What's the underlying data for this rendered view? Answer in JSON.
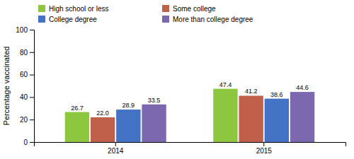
{
  "chart_data": {
    "type": "bar",
    "categories": [
      "2014",
      "2015"
    ],
    "series": [
      {
        "name": "High school or less",
        "color": "#8DC63F",
        "values": [
          26.7,
          47.4
        ],
        "value_labels": [
          "26.7",
          "47.4"
        ]
      },
      {
        "name": "Some college",
        "color": "#C1604A",
        "values": [
          22.0,
          41.2
        ],
        "value_labels": [
          "22.0",
          "41.2"
        ]
      },
      {
        "name": "College degree",
        "color": "#4472C4",
        "values": [
          28.9,
          38.6
        ],
        "value_labels": [
          "28.9",
          "38.6"
        ]
      },
      {
        "name": "More than college degree",
        "color": "#7B68AE",
        "values": [
          33.5,
          44.6
        ],
        "value_labels": [
          "33.5",
          "44.6"
        ]
      }
    ],
    "ylabel": "Percentage vaccinated",
    "ylim": [
      0,
      100
    ],
    "yticks": [
      0,
      20,
      40,
      60,
      80,
      100
    ],
    "data_labels": true,
    "grid": false,
    "legend": "top-left"
  }
}
